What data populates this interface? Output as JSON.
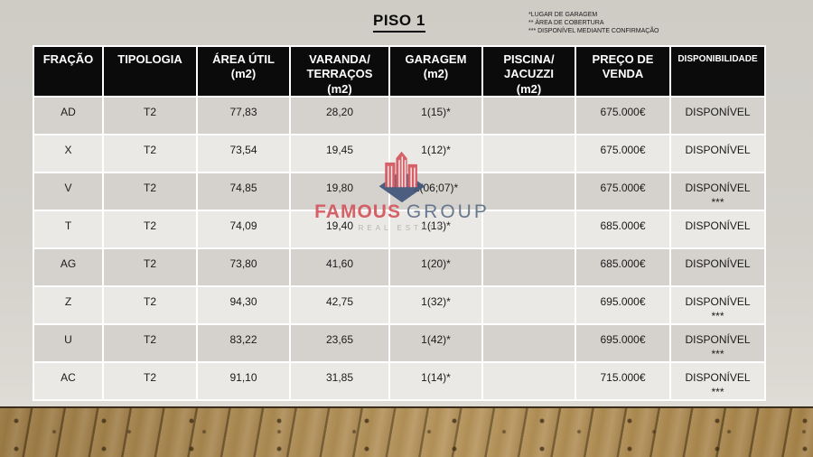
{
  "slide": {
    "title": "PISO 1",
    "legend": [
      "*LUGAR DE GARAGEM",
      "** ÁREA DE COBERTURA",
      "*** DISPONÍVEL MEDIANTE CONFIRMAÇÃO"
    ]
  },
  "logo": {
    "brand_primary": "FAMOUS",
    "brand_secondary": "GROUP",
    "tagline": "REAL ESTATE"
  },
  "table": {
    "columns": [
      "FRAÇÃO",
      "TIPOLOGIA",
      "ÁREA ÚTIL\n(m2)",
      "VARANDA/\nTERRAÇOS\n(m2)",
      "GARAGEM\n(m2)",
      "PISCINA/\nJACUZZI\n(m2)",
      "PREÇO DE\nVENDA",
      "DISPONIBILIDADE"
    ],
    "rows": [
      {
        "fracao": "AD",
        "tipologia": "T2",
        "area_util": "77,83",
        "varanda": "28,20",
        "garagem": "1(15)*",
        "piscina": "",
        "preco": "675.000€",
        "disponibilidade": "DISPONÍVEL"
      },
      {
        "fracao": "X",
        "tipologia": "T2",
        "area_util": "73,54",
        "varanda": "19,45",
        "garagem": "1(12)*",
        "piscina": "",
        "preco": "675.000€",
        "disponibilidade": "DISPONÍVEL"
      },
      {
        "fracao": "V",
        "tipologia": "T2",
        "area_util": "74,85",
        "varanda": "19,80",
        "garagem": "2(06;07)*",
        "piscina": "",
        "preco": "675.000€",
        "disponibilidade": "DISPONÍVEL\n***"
      },
      {
        "fracao": "T",
        "tipologia": "T2",
        "area_util": "74,09",
        "varanda": "19,40",
        "garagem": "1(13)*",
        "piscina": "",
        "preco": "685.000€",
        "disponibilidade": "DISPONÍVEL"
      },
      {
        "fracao": "AG",
        "tipologia": "T2",
        "area_util": "73,80",
        "varanda": "41,60",
        "garagem": "1(20)*",
        "piscina": "",
        "preco": "685.000€",
        "disponibilidade": "DISPONÍVEL"
      },
      {
        "fracao": "Z",
        "tipologia": "T2",
        "area_util": "94,30",
        "varanda": "42,75",
        "garagem": "1(32)*",
        "piscina": "",
        "preco": "695.000€",
        "disponibilidade": "DISPONÍVEL\n***"
      },
      {
        "fracao": "U",
        "tipologia": "T2",
        "area_util": "83,22",
        "varanda": "23,65",
        "garagem": "1(42)*",
        "piscina": "",
        "preco": "695.000€",
        "disponibilidade": "DISPONÍVEL\n***"
      },
      {
        "fracao": "AC",
        "tipologia": "T2",
        "area_util": "91,10",
        "varanda": "31,85",
        "garagem": "1(14)*",
        "piscina": "",
        "preco": "715.000€",
        "disponibilidade": "DISPONÍVEL\n***"
      }
    ]
  },
  "colors": {
    "header_bg": "#0b0b0b",
    "row_dark": "#d5d2ce",
    "row_light": "#ebe9e5",
    "accent_red": "#d4565e",
    "accent_navy": "#41567a",
    "wood_base": "#a8884f",
    "wall": "#d3d0ca"
  }
}
